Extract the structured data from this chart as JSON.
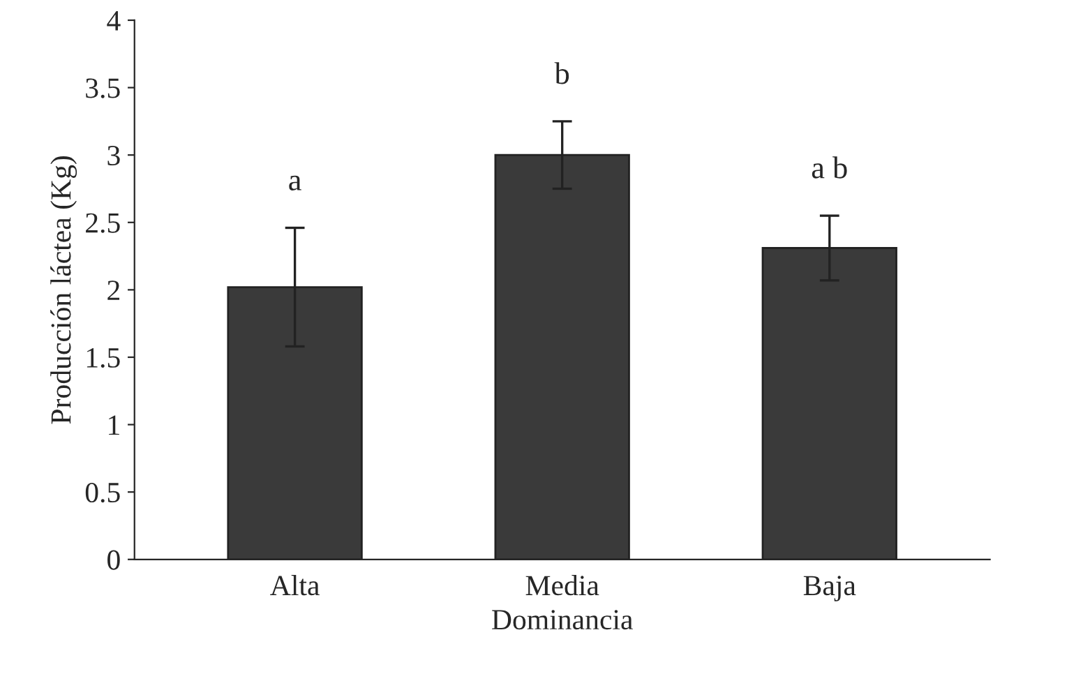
{
  "chart_data": {
    "type": "bar",
    "xlabel": "Dominancia",
    "ylabel": "Producción láctea (Kg)",
    "categories": [
      "Alta",
      "Media",
      "Baja"
    ],
    "values": [
      2.02,
      3.0,
      2.31
    ],
    "errors": [
      0.44,
      0.25,
      0.24
    ],
    "color": "#3a3a3a",
    "ylim": [
      0,
      4
    ],
    "yticks": [
      0,
      0.5,
      1,
      1.5,
      2,
      2.5,
      3,
      3.5,
      4
    ],
    "grid": false,
    "annotations": [
      "a",
      "b",
      "a b"
    ]
  }
}
